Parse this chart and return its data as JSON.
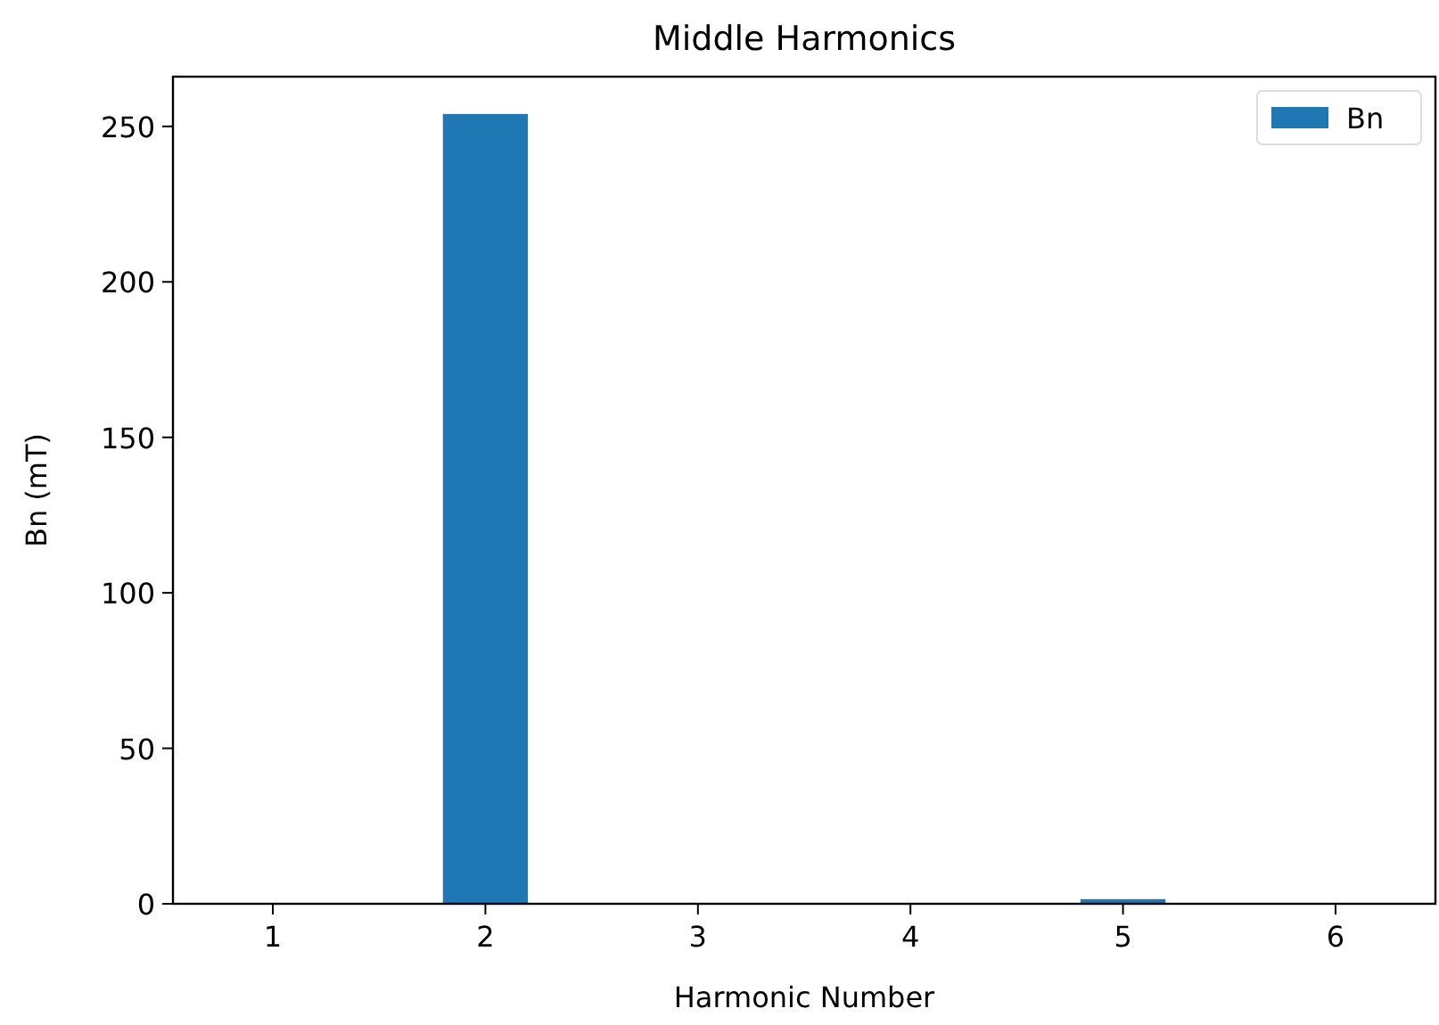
{
  "chart_data": {
    "type": "bar",
    "title": "Middle Harmonics",
    "xlabel": "Harmonic Number",
    "ylabel": "Bn (mT)",
    "x": [
      1,
      2,
      3,
      4,
      5,
      6
    ],
    "series": [
      {
        "name": "Bn",
        "color": "#1f77b4",
        "values": [
          0,
          254,
          0,
          0,
          1.5,
          0
        ]
      }
    ],
    "xlim": [
      0.53,
      6.47
    ],
    "xticks": [
      1,
      2,
      3,
      4,
      5,
      6
    ],
    "ylim": [
      0,
      266
    ],
    "yticks": [
      0,
      50,
      100,
      150,
      200,
      250
    ],
    "grid": false,
    "legend": "top right"
  }
}
